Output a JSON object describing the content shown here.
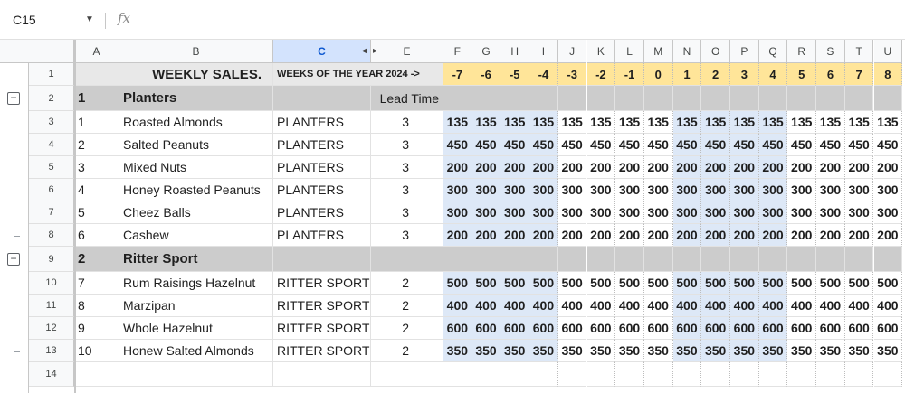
{
  "formula_bar": {
    "name_box": "C15",
    "fx_label": "fx"
  },
  "columns": [
    "A",
    "B",
    "C",
    "E",
    "F",
    "G",
    "H",
    "I",
    "J",
    "K",
    "L",
    "M",
    "N",
    "O",
    "P",
    "Q",
    "R",
    "S",
    "T",
    "U"
  ],
  "selected_column": "C",
  "row_numbers": [
    "1",
    "2",
    "3",
    "4",
    "5",
    "6",
    "7",
    "8",
    "9",
    "10",
    "11",
    "12",
    "13",
    "14"
  ],
  "header_row": {
    "title": "WEEKLY SALES.",
    "subtitle": "WEEKS OF THE YEAR 2024 ->",
    "weeks": [
      "-7",
      "-6",
      "-5",
      "-4",
      "-3",
      "-2",
      "-1",
      "0",
      "1",
      "2",
      "3",
      "4",
      "5",
      "6",
      "7",
      "8"
    ]
  },
  "groups": [
    {
      "number": "1",
      "name": "Planters",
      "lead_time_label": "Lead Time",
      "items": [
        {
          "a": "1",
          "b": "Roasted Almonds",
          "c": "PLANTERS",
          "e": "3",
          "value": "135"
        },
        {
          "a": "2",
          "b": "Salted Peanuts",
          "c": "PLANTERS",
          "e": "3",
          "value": "450"
        },
        {
          "a": "3",
          "b": "Mixed Nuts",
          "c": "PLANTERS",
          "e": "3",
          "value": "200"
        },
        {
          "a": "4",
          "b": "Honey Roasted Peanuts",
          "c": "PLANTERS",
          "e": "3",
          "value": "300"
        },
        {
          "a": "5",
          "b": "Cheez Balls",
          "c": "PLANTERS",
          "e": "3",
          "value": "300"
        },
        {
          "a": "6",
          "b": "Cashew",
          "c": "PLANTERS",
          "e": "3",
          "value": "200"
        }
      ]
    },
    {
      "number": "2",
      "name": "Ritter Sport",
      "lead_time_label": "",
      "items": [
        {
          "a": "7",
          "b": "Rum Raisings Hazelnut",
          "c": "RITTER SPORT",
          "e": "2",
          "value": "500"
        },
        {
          "a": "8",
          "b": "Marzipan",
          "c": "RITTER SPORT",
          "e": "2",
          "value": "400"
        },
        {
          "a": "9",
          "b": "Whole Hazelnut",
          "c": "RITTER SPORT",
          "e": "2",
          "value": "600"
        },
        {
          "a": "10",
          "b": "Honew Salted Almonds",
          "c": "RITTER SPORT",
          "e": "2",
          "value": "350"
        }
      ]
    }
  ],
  "colors": {
    "week_header": "#ffe599",
    "highlight": "#dde8f7",
    "group_row": "#cccccc",
    "selected_header": "#d3e3fd"
  }
}
